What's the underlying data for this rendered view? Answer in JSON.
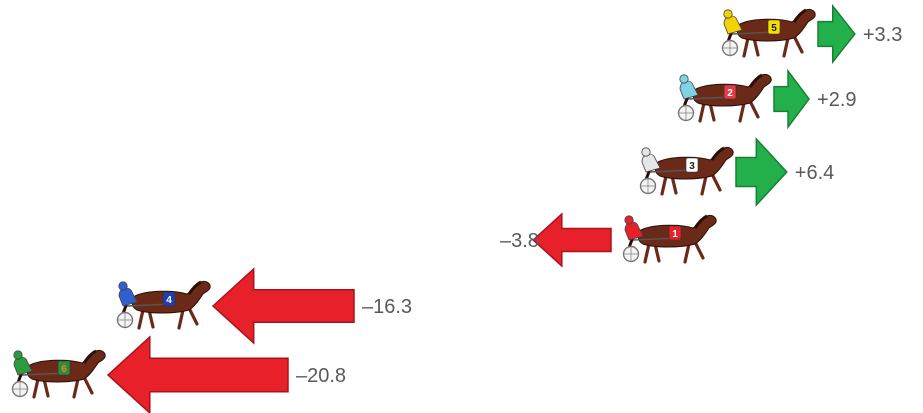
{
  "colors": {
    "gain_arrow": "#23b04b",
    "gain_arrow_stroke": "#178034",
    "loss_arrow": "#e8202a",
    "loss_arrow_stroke": "#a8141c",
    "label_text": "#595959",
    "horse_coat": "#6b2a18",
    "horse_mane": "#2a0f08"
  },
  "icons": {
    "horse": "harness-racing-horse-icon",
    "sulky_wheel": "sulky-wheel-icon"
  },
  "entries": [
    {
      "bib": "5",
      "bib_color": "#f2e100",
      "bib_text_color": "#1a1a1a",
      "driver_color": "#f2d200",
      "direction": "gain",
      "magnitude": 3.3,
      "label": "+3.3"
    },
    {
      "bib": "2",
      "bib_color": "#e23a46",
      "bib_text_color": "#ffffff",
      "driver_color": "#7fd3e3",
      "direction": "gain",
      "magnitude": 2.9,
      "label": "+2.9"
    },
    {
      "bib": "3",
      "bib_color": "#ffffff",
      "bib_text_color": "#1a1a1a",
      "driver_color": "#e6e6e6",
      "direction": "gain",
      "magnitude": 6.4,
      "label": "+6.4"
    },
    {
      "bib": "1",
      "bib_color": "#e8202a",
      "bib_text_color": "#ffffff",
      "driver_color": "#e8202a",
      "direction": "loss",
      "magnitude": 3.8,
      "label": "–3.8"
    },
    {
      "bib": "4",
      "bib_color": "#1f3fb0",
      "bib_text_color": "#ffffff",
      "driver_color": "#2f5fd0",
      "direction": "loss",
      "magnitude": 16.3,
      "label": "–16.3"
    },
    {
      "bib": "6",
      "bib_color": "#2e8b3a",
      "bib_text_color": "#e08a2a",
      "driver_color": "#2e9a3e",
      "direction": "loss",
      "magnitude": 20.8,
      "label": "–20.8"
    }
  ]
}
